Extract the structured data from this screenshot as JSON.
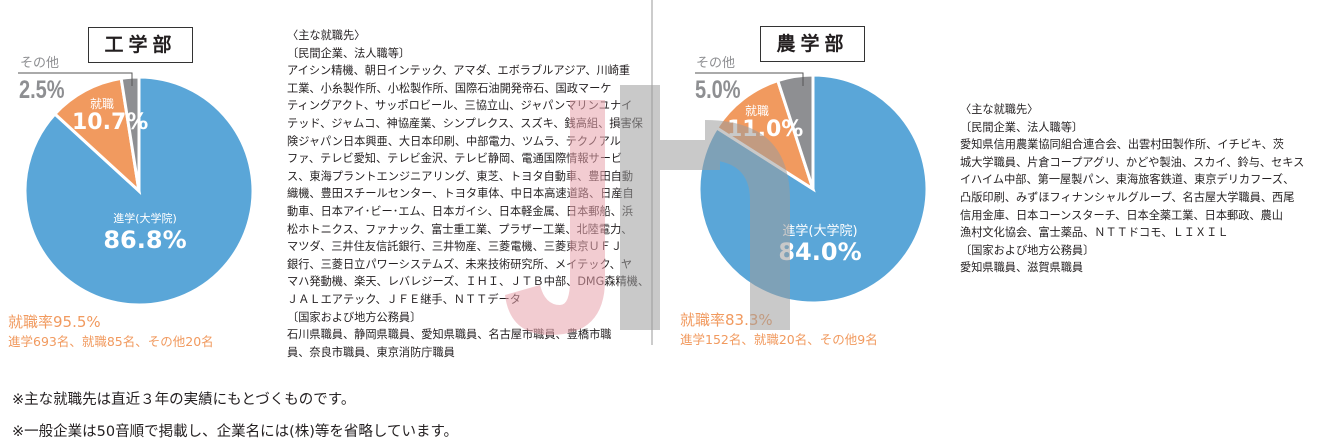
{
  "chart_data": [
    {
      "type": "pie",
      "title": "工学部",
      "categories": [
        "進学(大学院)",
        "就職",
        "その他"
      ],
      "values": [
        86.8,
        10.7,
        2.5
      ],
      "colors": [
        "#5aa6d8",
        "#f19a5f",
        "#8e8f92"
      ],
      "rate": "就職率95.5%",
      "counts": "進学693名、就職85名、その他20名"
    },
    {
      "type": "pie",
      "title": "農学部",
      "categories": [
        "進学(大学院)",
        "就職",
        "その他"
      ],
      "values": [
        84.0,
        11.0,
        5.0
      ],
      "colors": [
        "#5aa6d8",
        "#f19a5f",
        "#8e8f92"
      ],
      "rate": "就職率83.3%",
      "counts": "進学152名、就職20名、その他9名"
    }
  ],
  "labels": {
    "eng_pct": [
      "86.8%",
      "10.7%",
      "2.5%"
    ],
    "agr_pct": [
      "84.0%",
      "11.0%",
      "5.0%"
    ]
  },
  "eng_list": [
    "〈主な就職先〉",
    "〔民間企業、法人職等〕",
    "アイシン精機、朝日インテック、アマダ、エボラブルアジア、川崎重",
    "工業、小糸製作所、小松製作所、国際石油開発帝石、国政マーケ",
    "ティングアクト、サッポロビール、三協立山、ジャパンマリンユナイ",
    "テッド、ジャムコ、神協産業、シンプレクス、スズキ、銭高組、損害保",
    "険ジャパン日本興亜、大日本印刷、中部電力、ツムラ、テクノアル",
    "ファ、テレビ愛知、テレビ金沢、テレビ静岡、電通国際情報サービ",
    "ス、東海プラントエンジニアリング、東芝、トヨタ自動車、豊田自動",
    "織機、豊田スチールセンター、トヨタ車体、中日本高速道路、日産自",
    "動車、日本アイ･ビー･エム、日本ガイシ、日本軽金属、日本郵船、浜",
    "松ホトニクス、ファナック、富士重工業、プラザー工業、北陸電力、",
    "マツダ、三井住友信託銀行、三井物産、三菱電機、三菱東京ＵＦＪ",
    "銀行、三菱日立パワーシステムズ、未来技術研究所、メイテック、ヤ",
    "マハ発動機、楽天、レバレジーズ、ＩＨＩ、ＪＴＢ中部、DMG森精機、",
    "ＪＡＬエアテック、ＪＦＥ継手、ＮＴＴデータ",
    "〔国家および地方公務員〕",
    "石川県職員、静岡県職員、愛知県職員、名古屋市職員、豊橋市職",
    "員、奈良市職員、東京消防庁職員"
  ],
  "agr_list": [
    "〈主な就職先〉",
    "〔民間企業、法人職等〕",
    "愛知県信用農業協同組合連合会、出雲村田製作所、イチビキ、茨",
    "城大学職員、片倉コープアグリ、かどや製油、スカイ、鈴与、セキス",
    "イハイム中部、第一屋製パン、東海旅客鉄道、東京デリカフーズ、",
    "凸版印刷、みずほフィナンシャルグループ、名古屋大学職員、西尾",
    "信用金庫、日本コーンスターチ、日本全薬工業、日本郵政、農山",
    "漁村文化協会、富士薬品、ＮＴＴドコモ、ＬＩＸＩＬ",
    "〔国家および地方公務員〕",
    "愛知県職員、滋賀県職員"
  ],
  "notes": [
    "※主な就職先は直近３年の実績にもとづくものです。",
    "※一般企業は50音順で掲載し、企業名には(株)等を省略しています。"
  ]
}
